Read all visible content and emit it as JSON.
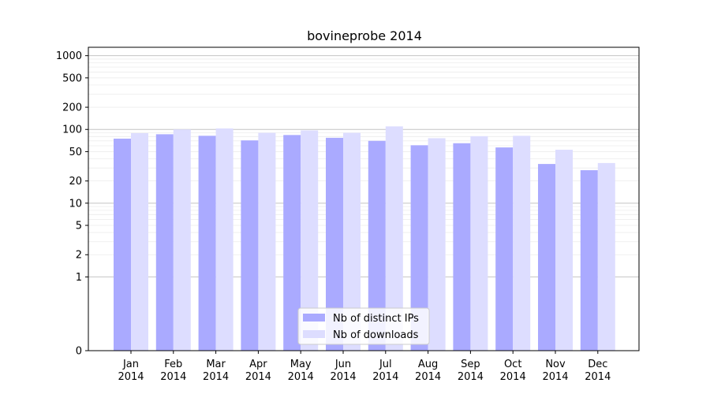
{
  "chart_data": {
    "type": "bar",
    "title": "bovineprobe 2014",
    "xlabel": "",
    "ylabel": "",
    "y_scale": "symlog",
    "ylim": [
      0,
      1300
    ],
    "y_ticks": [
      0,
      1,
      2,
      5,
      10,
      20,
      50,
      100,
      200,
      500,
      1000
    ],
    "y_tick_labels": [
      "0",
      "1",
      "2",
      "5",
      "10",
      "20",
      "50",
      "100",
      "200",
      "500",
      "1000"
    ],
    "grid": true,
    "legend_position": "lower-center",
    "categories": [
      {
        "month": "Jan",
        "year": "2014"
      },
      {
        "month": "Feb",
        "year": "2014"
      },
      {
        "month": "Mar",
        "year": "2014"
      },
      {
        "month": "Apr",
        "year": "2014"
      },
      {
        "month": "May",
        "year": "2014"
      },
      {
        "month": "Jun",
        "year": "2014"
      },
      {
        "month": "Jul",
        "year": "2014"
      },
      {
        "month": "Aug",
        "year": "2014"
      },
      {
        "month": "Sep",
        "year": "2014"
      },
      {
        "month": "Oct",
        "year": "2014"
      },
      {
        "month": "Nov",
        "year": "2014"
      },
      {
        "month": "Dec",
        "year": "2014"
      }
    ],
    "series": [
      {
        "name": "Nb of distinct IPs",
        "color": "#aaaaff",
        "values": [
          75,
          86,
          82,
          71,
          84,
          77,
          70,
          61,
          65,
          57,
          34,
          28
        ]
      },
      {
        "name": "Nb of downloads",
        "color": "#ddddff",
        "values": [
          89,
          100,
          103,
          90,
          97,
          90,
          110,
          76,
          81,
          82,
          53,
          35
        ]
      }
    ]
  }
}
